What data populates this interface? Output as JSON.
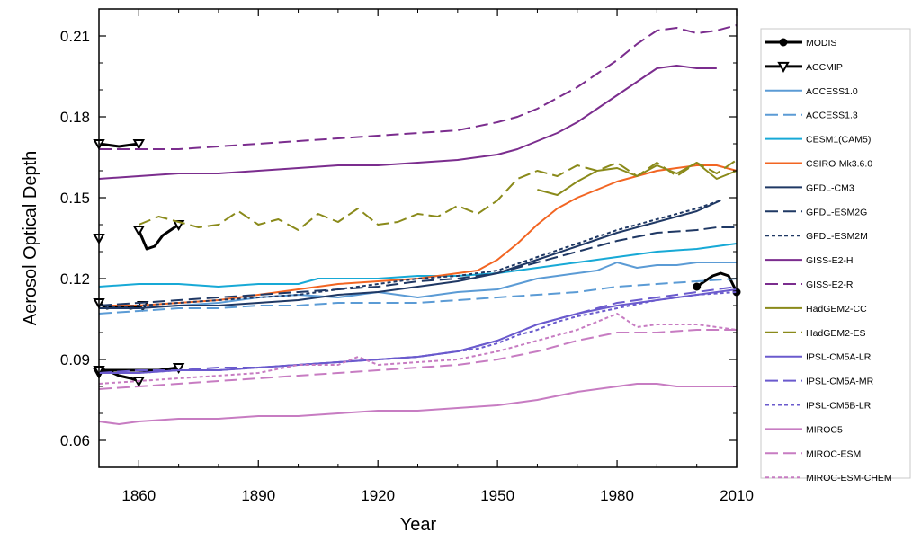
{
  "chart_data": {
    "type": "line",
    "xlabel": "Year",
    "ylabel": "Aerosol Optical Depth",
    "xlim": [
      1850,
      2010
    ],
    "ylim": [
      0.05,
      0.22
    ],
    "xticks": [
      1860,
      1890,
      1920,
      1950,
      1980,
      2010
    ],
    "yticks": [
      0.06,
      0.09,
      0.12,
      0.15,
      0.18,
      0.21
    ],
    "xtick_labels": [
      "1860",
      "1890",
      "1920",
      "1950",
      "1980",
      "2010"
    ],
    "ytick_labels": [
      "0.06",
      "0.09",
      "0.12",
      "0.15",
      "0.18",
      "0.21"
    ],
    "grid": false,
    "legend_position": "right, outside plot area",
    "series": [
      {
        "name": "MODIS",
        "color": "#000000",
        "dash": "solid",
        "width": 3,
        "marker": "circle",
        "x": [
          2000,
          2002,
          2004,
          2006,
          2008,
          2009,
          2010
        ],
        "y": [
          0.117,
          0.119,
          0.121,
          0.122,
          0.121,
          0.118,
          0.115
        ]
      },
      {
        "name": "ACCMIP",
        "color": "#000000",
        "dash": "solid",
        "width": 3,
        "marker": "triangle",
        "segments": [
          {
            "x": [
              1850,
              1855,
              1860
            ],
            "y": [
              0.17,
              0.169,
              0.17
            ]
          },
          {
            "x": [
              1850,
              1852,
              1855,
              1858,
              1861
            ],
            "y": [
              0.111,
              0.109,
              0.11,
              0.109,
              0.11
            ]
          },
          {
            "x": [
              1850,
              1852,
              1855,
              1858,
              1860
            ],
            "y": [
              0.085,
              0.086,
              0.084,
              0.083,
              0.082
            ]
          },
          {
            "x": [
              1850,
              1855,
              1860,
              1865,
              1870
            ],
            "y": [
              0.086,
              0.086,
              0.086,
              0.086,
              0.087
            ]
          },
          {
            "x": [
              1860,
              1862,
              1864,
              1866,
              1870
            ],
            "y": [
              0.138,
              0.131,
              0.132,
              0.136,
              0.14
            ]
          },
          {
            "x": [
              1850
            ],
            "y": [
              0.135
            ]
          }
        ]
      },
      {
        "name": "ACCESS1.0",
        "color": "#5b9bd5",
        "dash": "solid",
        "width": 2,
        "x": [
          1850,
          1860,
          1870,
          1880,
          1890,
          1900,
          1910,
          1920,
          1930,
          1940,
          1950,
          1955,
          1960,
          1965,
          1970,
          1975,
          1980,
          1985,
          1990,
          1995,
          2000,
          2005,
          2010
        ],
        "y": [
          0.109,
          0.109,
          0.11,
          0.111,
          0.113,
          0.114,
          0.113,
          0.115,
          0.113,
          0.115,
          0.116,
          0.118,
          0.12,
          0.121,
          0.122,
          0.123,
          0.126,
          0.124,
          0.125,
          0.125,
          0.126,
          0.126,
          0.126
        ]
      },
      {
        "name": "ACCESS1.3",
        "color": "#5b9bd5",
        "dash": "long",
        "width": 2,
        "x": [
          1850,
          1860,
          1870,
          1880,
          1890,
          1900,
          1910,
          1920,
          1930,
          1940,
          1950,
          1960,
          1970,
          1980,
          1990,
          2000,
          2010
        ],
        "y": [
          0.107,
          0.108,
          0.109,
          0.109,
          0.11,
          0.11,
          0.111,
          0.111,
          0.111,
          0.112,
          0.113,
          0.114,
          0.115,
          0.117,
          0.118,
          0.119,
          0.12
        ]
      },
      {
        "name": "CESM1(CAM5)",
        "color": "#17a9d6",
        "dash": "solid",
        "width": 2,
        "x": [
          1850,
          1860,
          1870,
          1880,
          1890,
          1900,
          1905,
          1910,
          1920,
          1930,
          1940,
          1950,
          1960,
          1970,
          1980,
          1990,
          2000,
          2010
        ],
        "y": [
          0.117,
          0.118,
          0.118,
          0.117,
          0.118,
          0.118,
          0.12,
          0.12,
          0.12,
          0.121,
          0.121,
          0.122,
          0.124,
          0.126,
          0.128,
          0.13,
          0.131,
          0.133
        ]
      },
      {
        "name": "CSIRO-Mk3.6.0",
        "color": "#f26522",
        "dash": "solid",
        "width": 2,
        "x": [
          1850,
          1860,
          1870,
          1880,
          1890,
          1900,
          1910,
          1920,
          1930,
          1940,
          1945,
          1950,
          1955,
          1960,
          1965,
          1970,
          1975,
          1980,
          1985,
          1990,
          1995,
          2000,
          2005,
          2010
        ],
        "y": [
          0.11,
          0.11,
          0.111,
          0.112,
          0.114,
          0.116,
          0.118,
          0.119,
          0.12,
          0.122,
          0.123,
          0.127,
          0.133,
          0.14,
          0.146,
          0.15,
          0.153,
          0.156,
          0.158,
          0.16,
          0.161,
          0.162,
          0.162,
          0.16
        ]
      },
      {
        "name": "GFDL-CM3",
        "color": "#1f3864",
        "dash": "solid",
        "width": 2,
        "x": [
          1850,
          1860,
          1870,
          1880,
          1890,
          1900,
          1910,
          1920,
          1930,
          1940,
          1950,
          1960,
          1970,
          1980,
          1990,
          2000,
          2006
        ],
        "y": [
          0.109,
          0.109,
          0.11,
          0.11,
          0.111,
          0.112,
          0.114,
          0.115,
          0.117,
          0.119,
          0.122,
          0.127,
          0.132,
          0.137,
          0.141,
          0.145,
          0.149
        ]
      },
      {
        "name": "GFDL-ESM2G",
        "color": "#1f3864",
        "dash": "long",
        "width": 2,
        "x": [
          1850,
          1860,
          1870,
          1880,
          1890,
          1900,
          1910,
          1920,
          1930,
          1940,
          1950,
          1960,
          1970,
          1980,
          1990,
          2000,
          2005,
          2010
        ],
        "y": [
          0.11,
          0.111,
          0.112,
          0.113,
          0.114,
          0.115,
          0.116,
          0.117,
          0.119,
          0.12,
          0.122,
          0.126,
          0.13,
          0.134,
          0.137,
          0.138,
          0.139,
          0.139
        ]
      },
      {
        "name": "GFDL-ESM2M",
        "color": "#1f3864",
        "dash": "short",
        "width": 2,
        "x": [
          1850,
          1860,
          1870,
          1880,
          1890,
          1900,
          1910,
          1920,
          1930,
          1940,
          1950,
          1960,
          1970,
          1980,
          1990,
          2000,
          2006
        ],
        "y": [
          0.109,
          0.11,
          0.111,
          0.112,
          0.113,
          0.114,
          0.116,
          0.118,
          0.12,
          0.121,
          0.123,
          0.128,
          0.133,
          0.138,
          0.142,
          0.146,
          0.149
        ]
      },
      {
        "name": "GISS-E2-H",
        "color": "#7b2d8e",
        "dash": "solid",
        "width": 2,
        "x": [
          1850,
          1860,
          1870,
          1880,
          1890,
          1900,
          1910,
          1920,
          1930,
          1940,
          1950,
          1955,
          1960,
          1965,
          1970,
          1975,
          1980,
          1985,
          1990,
          1995,
          2000,
          2005
        ],
        "y": [
          0.157,
          0.158,
          0.159,
          0.159,
          0.16,
          0.161,
          0.162,
          0.162,
          0.163,
          0.164,
          0.166,
          0.168,
          0.171,
          0.174,
          0.178,
          0.183,
          0.188,
          0.193,
          0.198,
          0.199,
          0.198,
          0.198
        ]
      },
      {
        "name": "GISS-E2-R",
        "color": "#7b2d8e",
        "dash": "long",
        "width": 2,
        "x": [
          1850,
          1860,
          1870,
          1880,
          1890,
          1900,
          1910,
          1920,
          1930,
          1940,
          1950,
          1955,
          1960,
          1965,
          1970,
          1975,
          1980,
          1985,
          1990,
          1995,
          2000,
          2005,
          2010
        ],
        "y": [
          0.168,
          0.168,
          0.168,
          0.169,
          0.17,
          0.171,
          0.172,
          0.173,
          0.174,
          0.175,
          0.178,
          0.18,
          0.183,
          0.187,
          0.191,
          0.196,
          0.201,
          0.207,
          0.212,
          0.213,
          0.211,
          0.212,
          0.214
        ]
      },
      {
        "name": "HadGEM2-CC",
        "color": "#8a8a1a",
        "dash": "solid",
        "width": 2,
        "x": [
          1960,
          1965,
          1970,
          1975,
          1980,
          1985,
          1990,
          1995,
          2000,
          2005,
          2010
        ],
        "y": [
          0.153,
          0.151,
          0.156,
          0.16,
          0.161,
          0.158,
          0.162,
          0.159,
          0.163,
          0.157,
          0.16
        ]
      },
      {
        "name": "HadGEM2-ES",
        "color": "#8a8a1a",
        "dash": "long",
        "width": 2,
        "x": [
          1860,
          1865,
          1870,
          1875,
          1880,
          1885,
          1890,
          1895,
          1900,
          1905,
          1910,
          1915,
          1920,
          1925,
          1930,
          1935,
          1940,
          1945,
          1950,
          1955,
          1960,
          1965,
          1970,
          1975,
          1980,
          1985,
          1990,
          1995,
          2000,
          2005,
          2010
        ],
        "y": [
          0.14,
          0.143,
          0.141,
          0.139,
          0.14,
          0.145,
          0.14,
          0.142,
          0.138,
          0.144,
          0.141,
          0.146,
          0.14,
          0.141,
          0.144,
          0.143,
          0.147,
          0.144,
          0.149,
          0.157,
          0.16,
          0.158,
          0.162,
          0.16,
          0.163,
          0.158,
          0.163,
          0.158,
          0.163,
          0.159,
          0.164
        ]
      },
      {
        "name": "IPSL-CM5A-LR",
        "color": "#6a5acd",
        "dash": "solid",
        "width": 2,
        "x": [
          1850,
          1860,
          1870,
          1880,
          1890,
          1900,
          1910,
          1920,
          1930,
          1940,
          1945,
          1950,
          1955,
          1960,
          1965,
          1970,
          1980,
          1990,
          2000,
          2010
        ],
        "y": [
          0.085,
          0.085,
          0.086,
          0.086,
          0.087,
          0.088,
          0.089,
          0.09,
          0.091,
          0.093,
          0.095,
          0.097,
          0.1,
          0.103,
          0.105,
          0.107,
          0.11,
          0.112,
          0.114,
          0.116
        ]
      },
      {
        "name": "IPSL-CM5A-MR",
        "color": "#6a5acd",
        "dash": "long",
        "width": 2,
        "x": [
          1850,
          1860,
          1870,
          1880,
          1890,
          1900,
          1910,
          1920,
          1930,
          1940,
          1945,
          1950,
          1955,
          1960,
          1965,
          1970,
          1980,
          1990,
          2000,
          2010
        ],
        "y": [
          0.085,
          0.086,
          0.086,
          0.087,
          0.087,
          0.088,
          0.089,
          0.09,
          0.091,
          0.093,
          0.095,
          0.097,
          0.1,
          0.103,
          0.105,
          0.107,
          0.111,
          0.113,
          0.115,
          0.117
        ]
      },
      {
        "name": "IPSL-CM5B-LR",
        "color": "#6a5acd",
        "dash": "short",
        "width": 2,
        "x": [
          1850,
          1860,
          1870,
          1880,
          1890,
          1900,
          1910,
          1920,
          1930,
          1940,
          1945,
          1950,
          1955,
          1960,
          1965,
          1970,
          1980,
          1990,
          2000,
          2010
        ],
        "y": [
          0.085,
          0.085,
          0.086,
          0.086,
          0.087,
          0.088,
          0.089,
          0.09,
          0.091,
          0.093,
          0.094,
          0.096,
          0.099,
          0.101,
          0.104,
          0.106,
          0.109,
          0.112,
          0.114,
          0.115
        ]
      },
      {
        "name": "MIROC5",
        "color": "#c77cc2",
        "dash": "solid",
        "width": 2,
        "x": [
          1850,
          1855,
          1860,
          1870,
          1880,
          1890,
          1900,
          1910,
          1920,
          1930,
          1940,
          1950,
          1960,
          1970,
          1980,
          1985,
          1990,
          1995,
          2000,
          2010
        ],
        "y": [
          0.067,
          0.066,
          0.067,
          0.068,
          0.068,
          0.069,
          0.069,
          0.07,
          0.071,
          0.071,
          0.072,
          0.073,
          0.075,
          0.078,
          0.08,
          0.081,
          0.081,
          0.08,
          0.08,
          0.08
        ]
      },
      {
        "name": "MIROC-ESM",
        "color": "#c77cc2",
        "dash": "long",
        "width": 2,
        "x": [
          1850,
          1860,
          1870,
          1880,
          1890,
          1900,
          1910,
          1920,
          1930,
          1940,
          1950,
          1960,
          1970,
          1980,
          1990,
          2000,
          2010
        ],
        "y": [
          0.079,
          0.08,
          0.081,
          0.082,
          0.083,
          0.084,
          0.085,
          0.086,
          0.087,
          0.088,
          0.09,
          0.093,
          0.097,
          0.1,
          0.1,
          0.101,
          0.101
        ]
      },
      {
        "name": "MIROC-ESM-CHEM",
        "color": "#c77cc2",
        "dash": "short",
        "width": 2,
        "x": [
          1850,
          1860,
          1870,
          1880,
          1890,
          1900,
          1910,
          1915,
          1920,
          1930,
          1940,
          1950,
          1960,
          1970,
          1975,
          1980,
          1985,
          1990,
          2000,
          2010
        ],
        "y": [
          0.081,
          0.082,
          0.083,
          0.084,
          0.085,
          0.088,
          0.088,
          0.091,
          0.088,
          0.089,
          0.09,
          0.093,
          0.097,
          0.101,
          0.104,
          0.107,
          0.102,
          0.103,
          0.103,
          0.101
        ]
      }
    ]
  }
}
